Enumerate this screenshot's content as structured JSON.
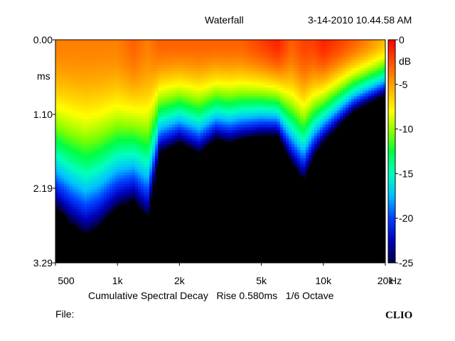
{
  "header": {
    "title": "Waterfall",
    "timestamp": "3-14-2010 10.44.58 AM"
  },
  "footer": {
    "subtitle": "Cumulative Spectral Decay   Rise 0.580ms   1/6 Octave",
    "file_label": "File:",
    "logo": "CLIO"
  },
  "chart_data": {
    "type": "heatmap",
    "title": "Waterfall",
    "subtitle": "Cumulative Spectral Decay   Rise 0.580ms   1/6 Octave",
    "x": {
      "label": "Hz",
      "scale": "log",
      "range": [
        500,
        20000
      ],
      "ticks": [
        500,
        1000,
        2000,
        5000,
        10000,
        20000
      ],
      "tick_labels": [
        "500",
        "1k",
        "2k",
        "5k",
        "10k",
        "20k"
      ]
    },
    "y": {
      "label": "ms",
      "range": [
        0,
        3.29
      ],
      "inverted": true,
      "ticks": [
        0,
        1.1,
        2.19,
        3.29
      ],
      "tick_labels": [
        "0.00",
        "1.10",
        "2.19",
        "3.29"
      ]
    },
    "colorbar": {
      "label": "dB",
      "range": [
        -25,
        0
      ],
      "ticks": [
        0,
        -5,
        -10,
        -15,
        -20,
        -25
      ],
      "tick_labels": [
        "0",
        "-5",
        "-10",
        "-15",
        "-20",
        "-25"
      ],
      "placement": "right"
    },
    "grid": false,
    "colors": {
      "background": "#000000",
      "hot": "#ff3000",
      "warm": "#ffb020",
      "mid": "#40ff40",
      "cool": "#00c0ff",
      "cold": "#0000c0"
    },
    "decay_profile": {
      "frequency_hz": [
        500,
        600,
        700,
        800,
        1000,
        1200,
        1400,
        1600,
        2000,
        2500,
        3000,
        3500,
        4000,
        5000,
        6000,
        7000,
        8000,
        9000,
        10000,
        12000,
        14000,
        16000,
        20000
      ],
      "decay_end_ms": [
        2.45,
        2.7,
        2.85,
        2.75,
        2.45,
        2.35,
        2.6,
        1.65,
        1.5,
        1.65,
        1.45,
        1.5,
        1.45,
        1.4,
        1.4,
        1.8,
        2.05,
        1.7,
        1.5,
        1.25,
        1.05,
        0.95,
        0.8
      ],
      "peak_level_db": [
        -4,
        -4,
        -4,
        -4,
        -4,
        -3,
        -4,
        -3,
        -3,
        -3,
        -3,
        -3,
        -3,
        -2,
        -1,
        -3,
        -2,
        -2,
        -1,
        -2,
        -3,
        -4,
        -6
      ]
    }
  }
}
